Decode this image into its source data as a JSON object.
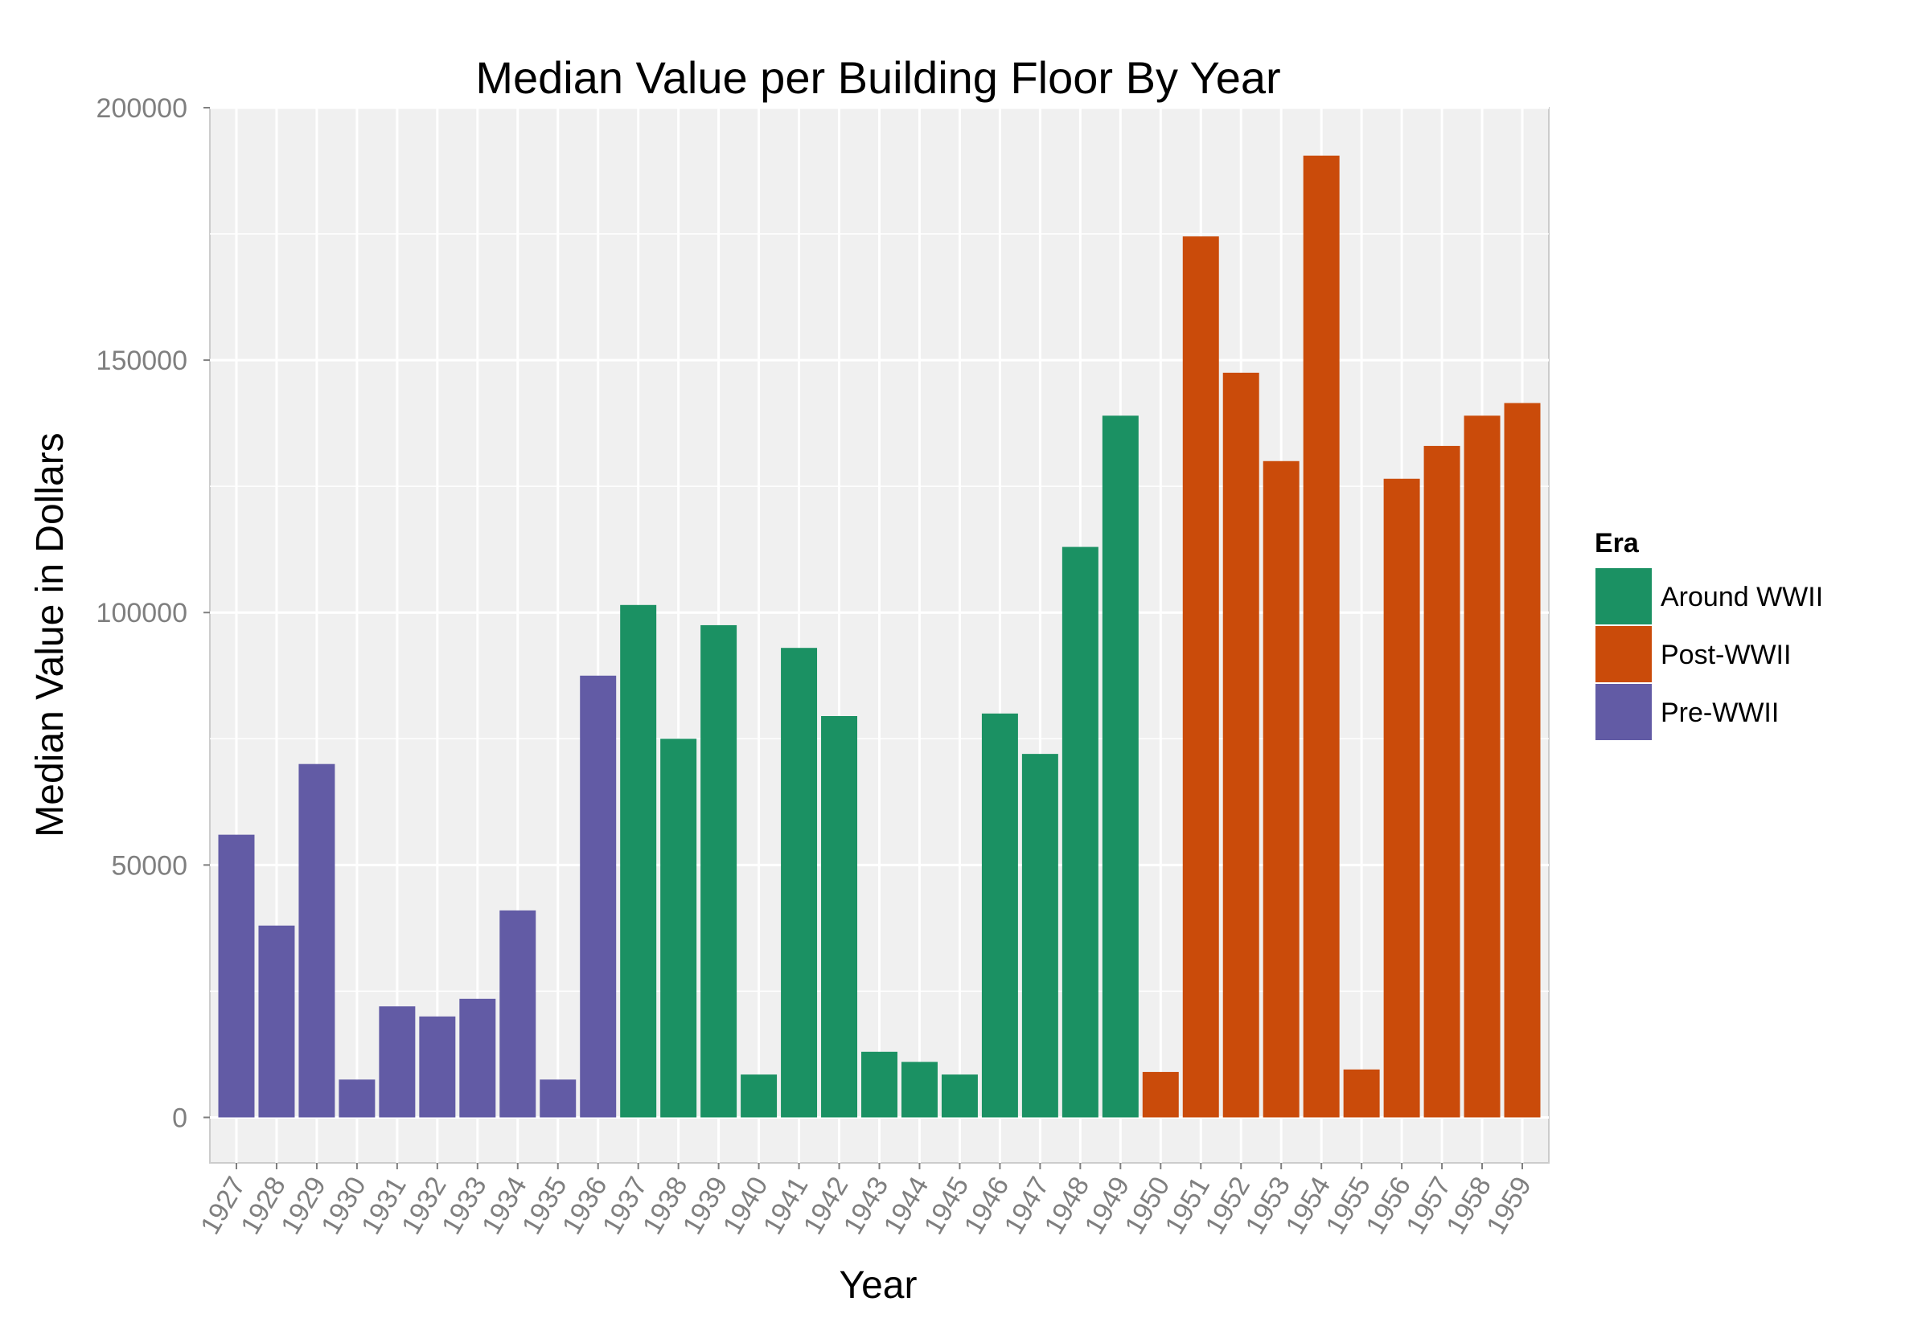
{
  "chart_data": {
    "type": "bar",
    "title": "Median Value per Building Floor By Year",
    "xlabel": "Year",
    "ylabel": "Median Value in Dollars",
    "ylim": [
      -9000,
      200000
    ],
    "yticks": [
      0,
      50000,
      100000,
      150000,
      200000
    ],
    "grid": true,
    "legend": {
      "title": "Era",
      "placement": "right",
      "entries": [
        {
          "name": "Around WWII",
          "color": "#1b9163"
        },
        {
          "name": "Post-WWII",
          "color": "#ca4b0a"
        },
        {
          "name": "Pre-WWII",
          "color": "#625ba5"
        }
      ]
    },
    "categories": [
      "1927",
      "1928",
      "1929",
      "1930",
      "1931",
      "1932",
      "1933",
      "1934",
      "1935",
      "1936",
      "1937",
      "1938",
      "1939",
      "1940",
      "1941",
      "1942",
      "1943",
      "1944",
      "1945",
      "1946",
      "1947",
      "1948",
      "1949",
      "1950",
      "1951",
      "1952",
      "1953",
      "1954",
      "1955",
      "1956",
      "1957",
      "1958",
      "1959"
    ],
    "values": [
      56000,
      38000,
      70000,
      7500,
      22000,
      20000,
      23500,
      41000,
      7500,
      87500,
      101500,
      75000,
      97500,
      8500,
      93000,
      79500,
      13000,
      11000,
      8500,
      80000,
      72000,
      113000,
      139000,
      9000,
      174500,
      147500,
      130000,
      190500,
      9500,
      126500,
      133000,
      139000,
      141500
    ],
    "eras": [
      "Pre-WWII",
      "Pre-WWII",
      "Pre-WWII",
      "Pre-WWII",
      "Pre-WWII",
      "Pre-WWII",
      "Pre-WWII",
      "Pre-WWII",
      "Pre-WWII",
      "Pre-WWII",
      "Around WWII",
      "Around WWII",
      "Around WWII",
      "Around WWII",
      "Around WWII",
      "Around WWII",
      "Around WWII",
      "Around WWII",
      "Around WWII",
      "Around WWII",
      "Around WWII",
      "Around WWII",
      "Around WWII",
      "Post-WWII",
      "Post-WWII",
      "Post-WWII",
      "Post-WWII",
      "Post-WWII",
      "Post-WWII",
      "Post-WWII",
      "Post-WWII",
      "Post-WWII",
      "Post-WWII"
    ]
  }
}
